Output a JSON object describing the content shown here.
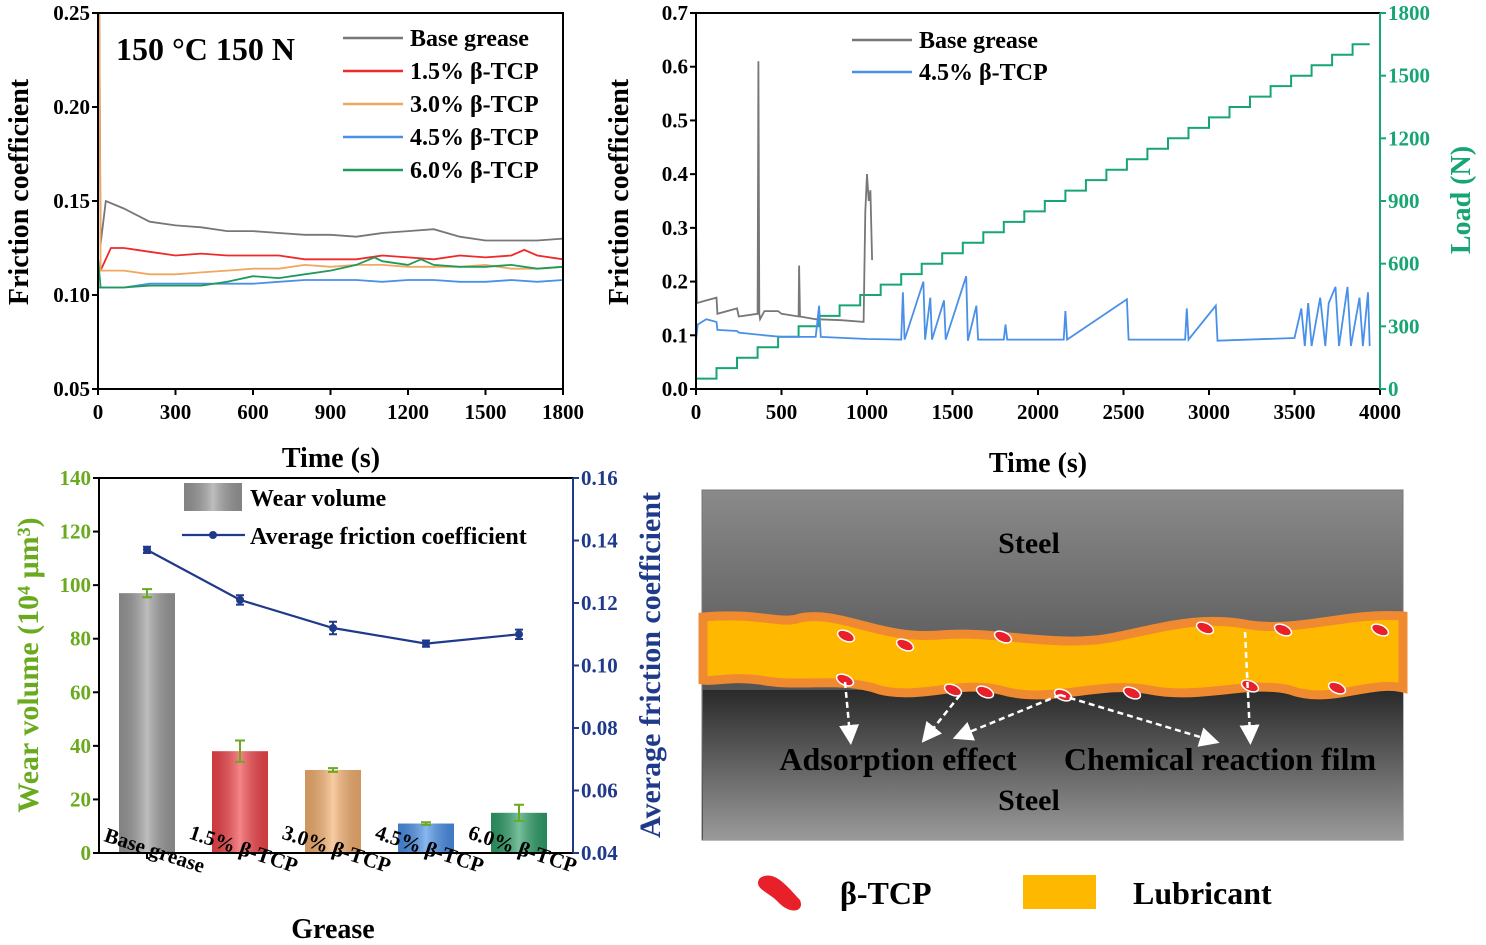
{
  "chart_data": [
    {
      "type": "line",
      "annotation": "150 °C 150 N",
      "xlabel": "Time (s)",
      "ylabel": "Friction coefficient",
      "xlim": [
        0,
        1800
      ],
      "ylim": [
        0.05,
        0.25
      ],
      "xticks": [
        "0",
        "300",
        "600",
        "900",
        "1200",
        "1500",
        "1800"
      ],
      "yticks": [
        "0.05",
        "0.10",
        "0.15",
        "0.20",
        "0.25"
      ],
      "legend_position": "top-right",
      "series": [
        {
          "name": "Base grease",
          "color": "#777777",
          "x": [
            0,
            5,
            10,
            30,
            100,
            200,
            300,
            400,
            500,
            600,
            700,
            800,
            900,
            1000,
            1100,
            1200,
            1300,
            1400,
            1500,
            1600,
            1700,
            1800
          ],
          "y": [
            0.25,
            0.25,
            0.127,
            0.15,
            0.146,
            0.139,
            0.137,
            0.136,
            0.134,
            0.134,
            0.133,
            0.132,
            0.132,
            0.131,
            0.133,
            0.134,
            0.135,
            0.131,
            0.129,
            0.129,
            0.129,
            0.13
          ]
        },
        {
          "name": "1.5% β-TCP",
          "color": "#ee2a2a",
          "x": [
            10,
            50,
            100,
            200,
            300,
            400,
            500,
            600,
            700,
            800,
            900,
            1000,
            1100,
            1200,
            1300,
            1400,
            1500,
            1600,
            1650,
            1700,
            1800
          ],
          "y": [
            0.113,
            0.125,
            0.125,
            0.123,
            0.121,
            0.122,
            0.121,
            0.121,
            0.121,
            0.119,
            0.119,
            0.119,
            0.121,
            0.12,
            0.119,
            0.121,
            0.12,
            0.121,
            0.124,
            0.121,
            0.119
          ]
        },
        {
          "name": "3.0% β-TCP",
          "color": "#f0a860",
          "x": [
            0,
            5,
            10,
            100,
            200,
            300,
            400,
            500,
            600,
            700,
            800,
            900,
            1000,
            1100,
            1200,
            1300,
            1400,
            1500,
            1600,
            1700,
            1800
          ],
          "y": [
            0.25,
            0.25,
            0.113,
            0.113,
            0.111,
            0.111,
            0.112,
            0.113,
            0.114,
            0.114,
            0.116,
            0.115,
            0.116,
            0.116,
            0.115,
            0.115,
            0.115,
            0.116,
            0.114,
            0.114,
            0.115
          ]
        },
        {
          "name": "4.5% β-TCP",
          "color": "#4a90e8",
          "x": [
            0,
            100,
            200,
            300,
            400,
            500,
            600,
            700,
            800,
            900,
            1000,
            1100,
            1200,
            1300,
            1400,
            1500,
            1600,
            1700,
            1800
          ],
          "y": [
            0.104,
            0.104,
            0.106,
            0.106,
            0.106,
            0.106,
            0.106,
            0.107,
            0.108,
            0.108,
            0.108,
            0.107,
            0.108,
            0.108,
            0.107,
            0.107,
            0.108,
            0.107,
            0.108
          ]
        },
        {
          "name": "6.0% β-TCP",
          "color": "#1f9a5a",
          "x": [
            0,
            10,
            100,
            200,
            300,
            400,
            500,
            600,
            700,
            800,
            900,
            1000,
            1070,
            1100,
            1200,
            1250,
            1300,
            1400,
            1500,
            1600,
            1700,
            1800
          ],
          "y": [
            0.12,
            0.104,
            0.104,
            0.105,
            0.105,
            0.105,
            0.107,
            0.11,
            0.109,
            0.111,
            0.113,
            0.116,
            0.12,
            0.118,
            0.116,
            0.119,
            0.116,
            0.115,
            0.115,
            0.116,
            0.114,
            0.115
          ]
        }
      ]
    },
    {
      "type": "line",
      "xlabel": "Time (s)",
      "ylabel": "Friction coefficient",
      "y2label": "Load (N)",
      "xlim": [
        0,
        4000
      ],
      "ylim": [
        0,
        0.7
      ],
      "y2lim": [
        0,
        1800
      ],
      "xticks": [
        "0",
        "500",
        "1000",
        "1500",
        "2000",
        "2500",
        "3000",
        "3500",
        "4000"
      ],
      "yticks": [
        "0.0",
        "0.1",
        "0.2",
        "0.3",
        "0.4",
        "0.5",
        "0.6",
        "0.7"
      ],
      "y2ticks": [
        "0",
        "300",
        "600",
        "900",
        "1200",
        "1500",
        "1800"
      ],
      "y2color": "#17a673",
      "legend_position": "top-center",
      "series": [
        {
          "name": "Base grease",
          "color": "#777777",
          "x": [
            0,
            5,
            60,
            120,
            125,
            240,
            250,
            360,
            365,
            370,
            375,
            400,
            480,
            500,
            600,
            603,
            608,
            700,
            850,
            980,
            990,
            1000,
            1010,
            1020,
            1030
          ],
          "y": [
            0.33,
            0.16,
            0.165,
            0.17,
            0.14,
            0.15,
            0.135,
            0.14,
            0.61,
            0.14,
            0.13,
            0.145,
            0.145,
            0.14,
            0.135,
            0.23,
            0.135,
            0.13,
            0.128,
            0.125,
            0.33,
            0.4,
            0.35,
            0.37,
            0.24
          ]
        },
        {
          "name": "4.5% β-TCP",
          "color": "#4a90e8",
          "x": [
            0,
            10,
            60,
            120,
            125,
            240,
            250,
            400,
            500,
            700,
            720,
            730,
            1000,
            1200,
            1210,
            1220,
            1330,
            1340,
            1370,
            1380,
            1450,
            1460,
            1580,
            1590,
            1640,
            1650,
            1800,
            1810,
            1820,
            2150,
            2160,
            2170,
            2520,
            2530,
            2860,
            2870,
            2880,
            3040,
            3050,
            3500,
            3540,
            3560,
            3580,
            3600,
            3650,
            3680,
            3700,
            3740,
            3760,
            3810,
            3830,
            3880,
            3900,
            3930,
            3940
          ],
          "y": [
            0.09,
            0.12,
            0.13,
            0.125,
            0.11,
            0.108,
            0.105,
            0.1,
            0.097,
            0.097,
            0.155,
            0.097,
            0.093,
            0.092,
            0.18,
            0.092,
            0.2,
            0.092,
            0.17,
            0.092,
            0.165,
            0.092,
            0.21,
            0.09,
            0.155,
            0.092,
            0.092,
            0.12,
            0.092,
            0.092,
            0.145,
            0.092,
            0.167,
            0.092,
            0.092,
            0.15,
            0.092,
            0.155,
            0.09,
            0.095,
            0.15,
            0.08,
            0.16,
            0.08,
            0.17,
            0.08,
            0.16,
            0.19,
            0.08,
            0.19,
            0.08,
            0.17,
            0.08,
            0.18,
            0.08
          ]
        },
        {
          "name": "Load",
          "axis": "right",
          "color": "#17a673",
          "x": [
            0,
            120,
            240,
            360,
            480,
            600,
            720,
            840,
            960,
            1080,
            1200,
            1320,
            1440,
            1560,
            1680,
            1800,
            1920,
            2040,
            2160,
            2280,
            2400,
            2520,
            2640,
            2760,
            2880,
            3000,
            3120,
            3240,
            3360,
            3480,
            3600,
            3720,
            3840,
            3940
          ],
          "y": [
            50,
            100,
            150,
            200,
            250,
            300,
            350,
            400,
            450,
            500,
            550,
            600,
            650,
            700,
            750,
            800,
            850,
            900,
            950,
            1000,
            1050,
            1100,
            1150,
            1200,
            1250,
            1300,
            1350,
            1400,
            1450,
            1500,
            1550,
            1600,
            1650,
            1650
          ]
        }
      ]
    },
    {
      "type": "bar",
      "xlabel": "Grease",
      "ylabel": "Wear volume (10⁴ μm³)",
      "y2label": "Average friction coefficient",
      "ylim": [
        0,
        140
      ],
      "y2lim": [
        0.04,
        0.16
      ],
      "yticks": [
        "0",
        "20",
        "40",
        "60",
        "80",
        "100",
        "120",
        "140"
      ],
      "y2ticks": [
        "0.04",
        "0.06",
        "0.08",
        "0.10",
        "0.12",
        "0.14",
        "0.16"
      ],
      "ycolor": "#6aaa1e",
      "y2color": "#1f3a8a",
      "categories": [
        "Base grease",
        "1.5% β-TCP",
        "3.0% β-TCP",
        "4.5% β-TCP",
        "6.0% β-TCP"
      ],
      "bar_colors": [
        "#9a9a9a",
        "#f0444a",
        "#f4b070",
        "#4a90e8",
        "#2e9e68"
      ],
      "legend_position": "top-right",
      "series": [
        {
          "name": "Wear volume",
          "kind": "bar",
          "values": [
            97,
            38,
            31,
            11,
            15
          ],
          "errors": [
            1.5,
            4,
            0.7,
            0.5,
            3
          ]
        },
        {
          "name": "Average friction coefficient",
          "kind": "line",
          "axis": "right",
          "values": [
            0.137,
            0.121,
            0.112,
            0.107,
            0.11
          ],
          "errors": [
            0.001,
            0.0015,
            0.002,
            0.001,
            0.0015
          ]
        }
      ]
    }
  ],
  "diagram": {
    "top_label": "Steel",
    "bottom_label": "Steel",
    "label_adsorption": "Adsorption effect",
    "label_film": "Chemical reaction film",
    "legend": [
      {
        "label": "β-TCP",
        "color": "#e8202a"
      },
      {
        "label": "Lubricant",
        "color": "#ffb800"
      }
    ],
    "film_color": "#f08a30",
    "lubricant_color": "#ffb800"
  }
}
